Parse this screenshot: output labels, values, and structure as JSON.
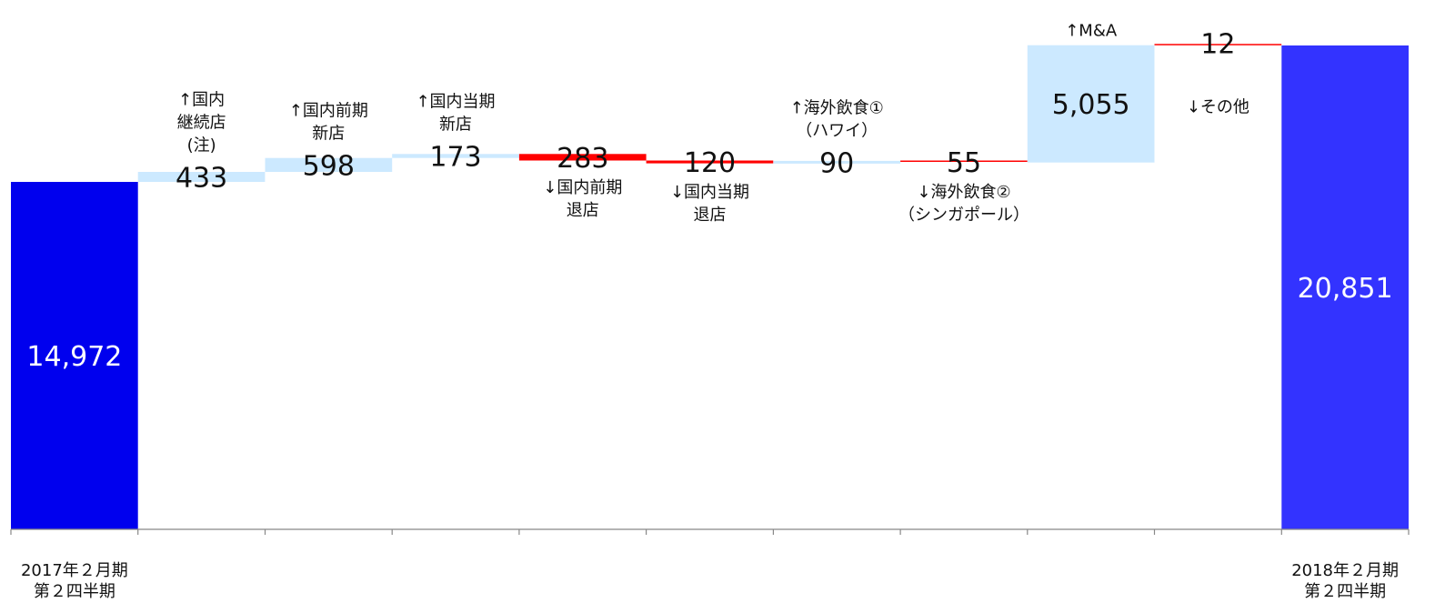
{
  "chart_data": {
    "type": "waterfall",
    "title": "",
    "xlabel": "",
    "ylabel": "",
    "ylim": [
      0,
      21500
    ],
    "grid": false,
    "legend": "none",
    "colors": {
      "total_start": "#0000ee",
      "total_end": "#3333ff",
      "increase": "#cce9ff",
      "decrease": "#ff0000"
    },
    "steps": [
      {
        "kind": "total",
        "value": 14972,
        "label": "14,972",
        "annotation": [],
        "category": [
          "2017年２月期",
          "第２四半期"
        ]
      },
      {
        "kind": "increase",
        "value": 433,
        "label": "433",
        "annotation": [
          "↑国内",
          "継続店",
          "(注)"
        ],
        "category": []
      },
      {
        "kind": "increase",
        "value": 598,
        "label": "598",
        "annotation": [
          "↑国内前期",
          "新店"
        ],
        "category": []
      },
      {
        "kind": "increase",
        "value": 173,
        "label": "173",
        "annotation": [
          "↑国内当期",
          "新店"
        ],
        "category": []
      },
      {
        "kind": "decrease",
        "value": 283,
        "label": "283",
        "annotation": [
          "↓国内前期",
          "退店"
        ],
        "category": []
      },
      {
        "kind": "decrease",
        "value": 120,
        "label": "120",
        "annotation": [
          "↓国内当期",
          "退店"
        ],
        "category": []
      },
      {
        "kind": "increase",
        "value": 90,
        "label": "90",
        "annotation": [
          "↑海外飲食①",
          "（ハワイ）"
        ],
        "category": []
      },
      {
        "kind": "decrease",
        "value": 55,
        "label": "55",
        "annotation": [
          "↓海外飲食②",
          "（シンガポール）"
        ],
        "category": []
      },
      {
        "kind": "increase",
        "value": 5055,
        "label": "5,055",
        "annotation": [
          "↑M&A"
        ],
        "category": []
      },
      {
        "kind": "decrease",
        "value": 12,
        "label": "12",
        "annotation": [
          "↓その他"
        ],
        "category": []
      },
      {
        "kind": "total",
        "value": 20851,
        "label": "20,851",
        "annotation": [],
        "category": [
          "2018年２月期",
          "第２四半期"
        ]
      }
    ]
  }
}
